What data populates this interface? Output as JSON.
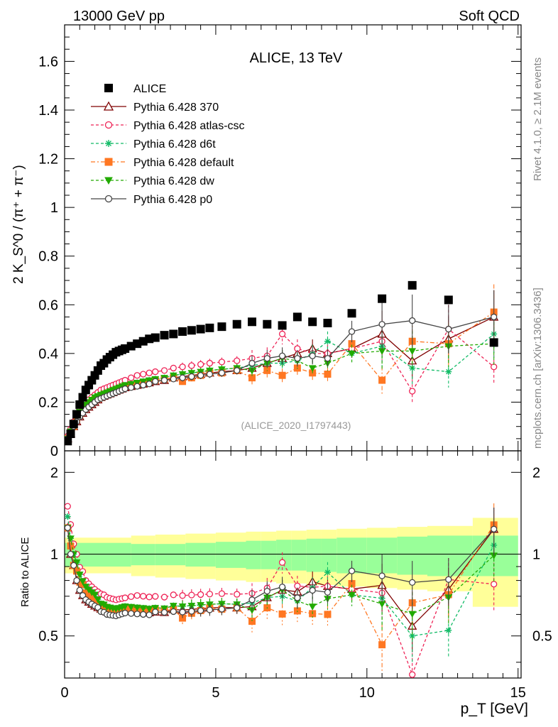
{
  "header": {
    "left": "13000 GeV pp",
    "right": "Soft QCD"
  },
  "side": {
    "rivet": "Rivet 4.1.0, ≥ 2.1M events",
    "mcplots": "mcplots.cern.ch [arXiv:1306.3436]"
  },
  "chart_data": {
    "type": "scatter",
    "title": "ALICE, 13 TeV",
    "analysis": "(ALICE_2020_I1797443)",
    "ylabel": "2 K_S^0 / (π⁺ + π⁻)",
    "ylim": [
      0,
      1.75
    ],
    "yticks": [
      0.2,
      0.4,
      0.6,
      0.8,
      1,
      1.2,
      1.4,
      1.6
    ],
    "ytick_labels": [
      "0.2",
      "0.4",
      "0.6",
      "0.8",
      "1",
      "1.2",
      "1.4",
      "1.6"
    ],
    "y0_label": "0",
    "ratio_ylabel": "Ratio to ALICE",
    "ratio_ylim": [
      0.35,
      2.4
    ],
    "ratio_yticks": [
      0.5,
      1,
      2
    ],
    "ratio_ytick_labels": [
      "0.5",
      "1",
      "2"
    ],
    "xlabel": "p_T [GeV]",
    "xlim": [
      0,
      15.1
    ],
    "xticks": [
      0,
      5,
      10,
      15
    ],
    "xtick_labels": [
      "0",
      "5",
      "10",
      "15"
    ],
    "x": [
      0.1,
      0.2,
      0.3,
      0.4,
      0.5,
      0.6,
      0.7,
      0.8,
      0.9,
      1.0,
      1.1,
      1.2,
      1.3,
      1.4,
      1.5,
      1.6,
      1.7,
      1.8,
      1.9,
      2.0,
      2.2,
      2.4,
      2.6,
      2.8,
      3.0,
      3.3,
      3.6,
      3.9,
      4.2,
      4.5,
      4.8,
      5.2,
      5.7,
      6.2,
      6.7,
      7.2,
      7.7,
      8.2,
      8.7,
      9.5,
      10.5,
      11.5,
      12.7,
      14.2
    ],
    "band_edges": [
      0,
      2.2,
      3.0,
      4.0,
      5.0,
      6.0,
      6.5,
      7.0,
      7.5,
      8.0,
      8.5,
      9.0,
      10.0,
      11.0,
      12.0,
      13.5,
      15.0
    ],
    "band_green": [
      0.1,
      0.09,
      0.09,
      0.1,
      0.11,
      0.12,
      0.12,
      0.13,
      0.13,
      0.14,
      0.14,
      0.15,
      0.15,
      0.16,
      0.17,
      0.17
    ],
    "band_yellow": [
      0.15,
      0.17,
      0.18,
      0.19,
      0.2,
      0.21,
      0.21,
      0.22,
      0.22,
      0.23,
      0.23,
      0.24,
      0.25,
      0.26,
      0.27,
      0.36
    ],
    "series": [
      {
        "name": "ALICE",
        "color": "#000000",
        "marker": "square",
        "dash": "",
        "values": [
          0.04,
          0.07,
          0.11,
          0.15,
          0.19,
          0.22,
          0.25,
          0.27,
          0.29,
          0.31,
          0.33,
          0.35,
          0.36,
          0.375,
          0.385,
          0.395,
          0.405,
          0.41,
          0.415,
          0.42,
          0.43,
          0.44,
          0.45,
          0.46,
          0.465,
          0.475,
          0.48,
          0.49,
          0.495,
          0.5,
          0.505,
          0.51,
          0.52,
          0.53,
          0.52,
          0.515,
          0.55,
          0.53,
          0.525,
          0.565,
          0.625,
          0.68,
          0.62,
          0.445
        ]
      },
      {
        "name": "Pythia 6.428 370",
        "color": "#7f0000",
        "marker": "triangle",
        "dash": "",
        "values": [
          0.05,
          0.07,
          0.1,
          0.12,
          0.14,
          0.155,
          0.17,
          0.18,
          0.19,
          0.2,
          0.21,
          0.22,
          0.225,
          0.23,
          0.235,
          0.24,
          0.245,
          0.25,
          0.255,
          0.26,
          0.265,
          0.27,
          0.275,
          0.28,
          0.285,
          0.29,
          0.3,
          0.305,
          0.31,
          0.315,
          0.32,
          0.325,
          0.33,
          0.34,
          0.36,
          0.38,
          0.4,
          0.42,
          0.4,
          0.42,
          0.48,
          0.37,
          0.46,
          0.55
        ]
      },
      {
        "name": "Pythia 6.428 atlas-csc",
        "color": "#ee2255",
        "marker": "circle",
        "dash": "4,3",
        "values": [
          0.06,
          0.09,
          0.12,
          0.15,
          0.17,
          0.19,
          0.2,
          0.21,
          0.22,
          0.23,
          0.24,
          0.25,
          0.255,
          0.26,
          0.265,
          0.27,
          0.275,
          0.28,
          0.285,
          0.29,
          0.3,
          0.31,
          0.315,
          0.32,
          0.325,
          0.33,
          0.34,
          0.345,
          0.35,
          0.355,
          0.36,
          0.365,
          0.37,
          0.38,
          0.39,
          0.48,
          0.42,
          0.4,
          0.4,
          0.42,
          0.45,
          0.245,
          0.5,
          0.345
        ]
      },
      {
        "name": "Pythia 6.428 d6t",
        "color": "#11bb66",
        "marker": "star",
        "dash": "4,3",
        "values": [
          0.055,
          0.08,
          0.11,
          0.14,
          0.16,
          0.175,
          0.19,
          0.2,
          0.21,
          0.22,
          0.225,
          0.23,
          0.235,
          0.24,
          0.245,
          0.25,
          0.255,
          0.26,
          0.265,
          0.27,
          0.275,
          0.28,
          0.285,
          0.29,
          0.295,
          0.3,
          0.31,
          0.315,
          0.32,
          0.325,
          0.33,
          0.335,
          0.34,
          0.35,
          0.36,
          0.36,
          0.37,
          0.4,
          0.45,
          0.4,
          0.43,
          0.34,
          0.325,
          0.48
        ]
      },
      {
        "name": "Pythia 6.428 default",
        "color": "#ff7722",
        "marker": "square",
        "dash": "6,3,2,3",
        "values": [
          0.05,
          0.075,
          0.1,
          0.13,
          0.15,
          0.17,
          0.18,
          0.19,
          0.2,
          0.21,
          0.215,
          0.22,
          0.23,
          0.235,
          0.24,
          0.245,
          0.25,
          0.255,
          0.26,
          0.265,
          0.27,
          0.275,
          0.28,
          0.285,
          0.29,
          0.295,
          0.3,
          0.285,
          0.3,
          0.31,
          0.32,
          0.32,
          0.33,
          0.3,
          0.33,
          0.31,
          0.34,
          0.32,
          0.315,
          0.44,
          0.29,
          0.45,
          0.44,
          0.57
        ]
      },
      {
        "name": "Pythia 6.428 dw",
        "color": "#22aa00",
        "marker": "triangle-down",
        "dash": "4,3",
        "values": [
          0.05,
          0.08,
          0.11,
          0.14,
          0.16,
          0.175,
          0.19,
          0.2,
          0.21,
          0.22,
          0.225,
          0.23,
          0.235,
          0.24,
          0.245,
          0.25,
          0.255,
          0.26,
          0.265,
          0.27,
          0.275,
          0.28,
          0.285,
          0.29,
          0.295,
          0.3,
          0.31,
          0.315,
          0.32,
          0.325,
          0.33,
          0.335,
          0.34,
          0.33,
          0.36,
          0.38,
          0.37,
          0.34,
          0.36,
          0.4,
          0.41,
          0.41,
          0.43,
          0.44
        ]
      },
      {
        "name": "Pythia 6.428 p0",
        "color": "#444444",
        "marker": "circle",
        "dash": "",
        "values": [
          0.05,
          0.07,
          0.1,
          0.12,
          0.14,
          0.155,
          0.17,
          0.18,
          0.19,
          0.2,
          0.21,
          0.215,
          0.22,
          0.225,
          0.23,
          0.235,
          0.24,
          0.245,
          0.25,
          0.255,
          0.26,
          0.265,
          0.27,
          0.275,
          0.285,
          0.29,
          0.295,
          0.3,
          0.305,
          0.31,
          0.315,
          0.32,
          0.33,
          0.36,
          0.38,
          0.39,
          0.38,
          0.39,
          0.38,
          0.49,
          0.52,
          0.535,
          0.5,
          0.55
        ]
      }
    ]
  }
}
